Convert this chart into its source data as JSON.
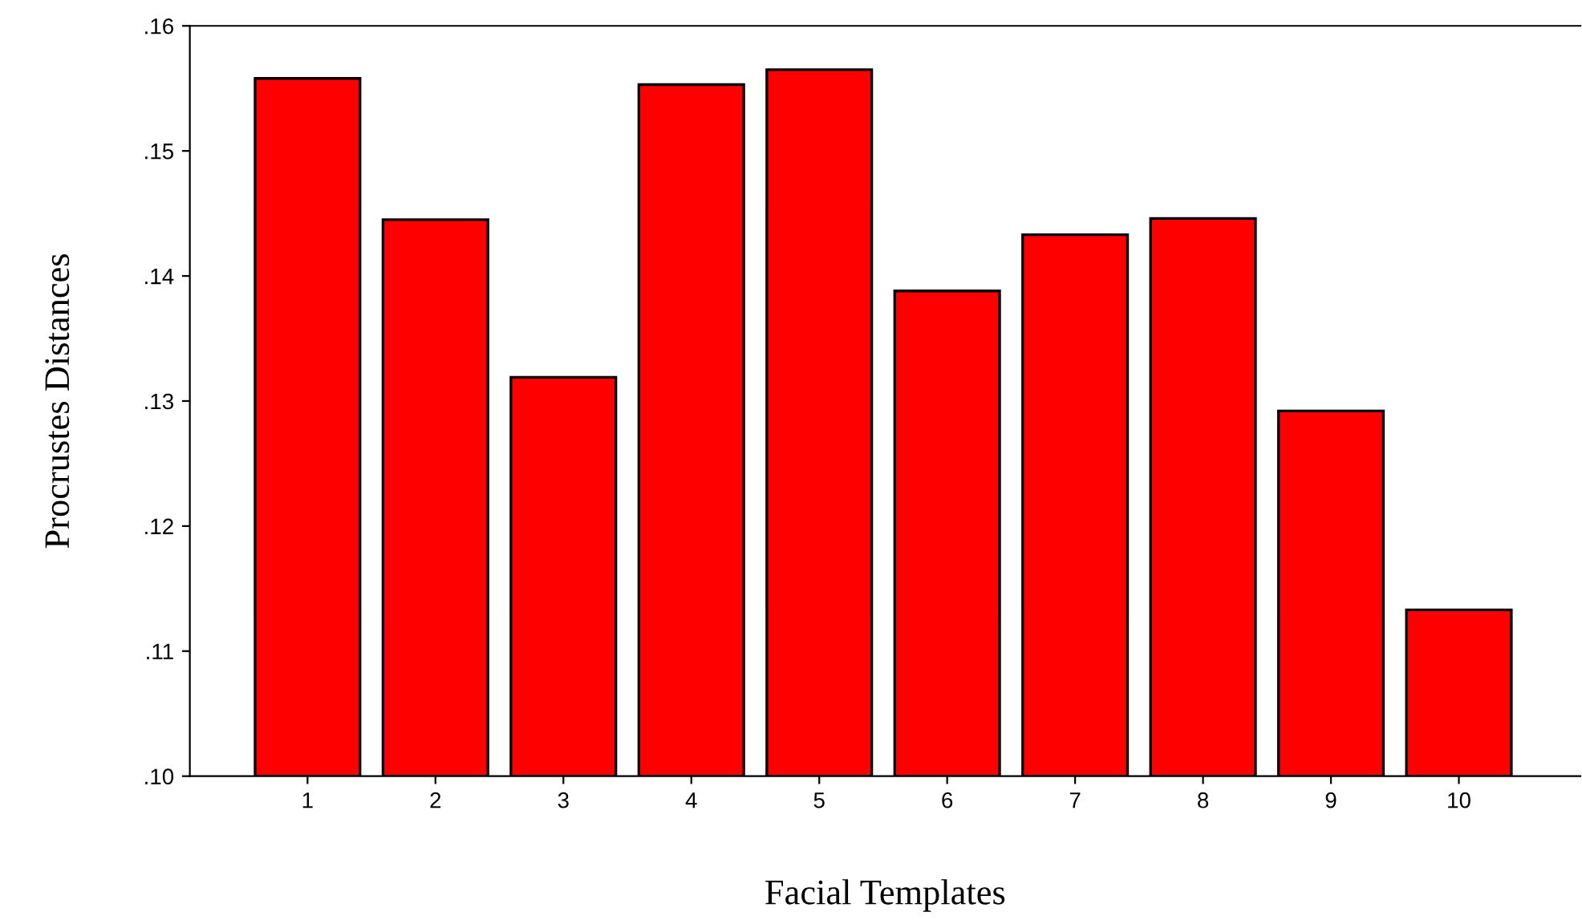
{
  "chart_data": {
    "type": "bar",
    "xlabel": "Facial Templates",
    "ylabel": "Procrustes Distances",
    "categories": [
      "1",
      "2",
      "3",
      "4",
      "5",
      "6",
      "7",
      "8",
      "9",
      "10"
    ],
    "values": [
      0.1558,
      0.1445,
      0.1319,
      0.1553,
      0.1565,
      0.1388,
      0.1433,
      0.1446,
      0.1292,
      0.1133
    ],
    "color": "#ff0000",
    "ylim": [
      0.1,
      0.16
    ],
    "yticks": [
      {
        "value": 0.1,
        "label": ".10"
      },
      {
        "value": 0.11,
        "label": ".11"
      },
      {
        "value": 0.12,
        "label": ".12"
      },
      {
        "value": 0.13,
        "label": ".13"
      },
      {
        "value": 0.14,
        "label": ".14"
      },
      {
        "value": 0.15,
        "label": ".15"
      },
      {
        "value": 0.16,
        "label": ".16"
      }
    ],
    "grid": false
  }
}
